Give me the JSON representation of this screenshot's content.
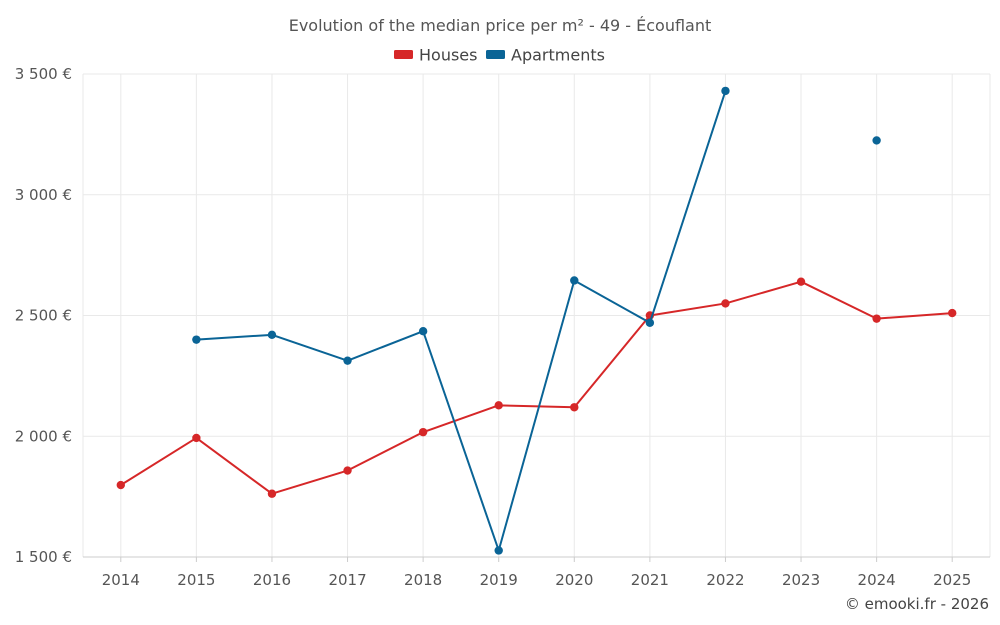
{
  "chart_data": {
    "type": "line",
    "title": "Evolution of the median price per m² - 49 - Écouflant",
    "categories": [
      "2014",
      "2015",
      "2016",
      "2017",
      "2018",
      "2019",
      "2020",
      "2021",
      "2022",
      "2023",
      "2024",
      "2025"
    ],
    "series": [
      {
        "name": "Houses",
        "color": "#d62728",
        "values": [
          1798,
          1993,
          1762,
          1858,
          2017,
          2128,
          2120,
          2500,
          2550,
          2640,
          2487,
          2510
        ]
      },
      {
        "name": "Apartments",
        "color": "#0a6496",
        "values": [
          null,
          2400,
          2420,
          2313,
          2435,
          1527,
          2645,
          2470,
          3430,
          null,
          3225,
          null
        ]
      }
    ],
    "ylim": [
      1500,
      3500
    ],
    "yticks": [
      1500,
      2000,
      2500,
      3000,
      3500
    ],
    "ytick_labels": [
      "1 500 €",
      "2 000 €",
      "2 500 €",
      "3 000 €",
      "3 500 €"
    ],
    "xlabel": "",
    "ylabel": "",
    "legend_position": "top-center",
    "grid": true
  },
  "credit": "© emooki.fr - 2026"
}
